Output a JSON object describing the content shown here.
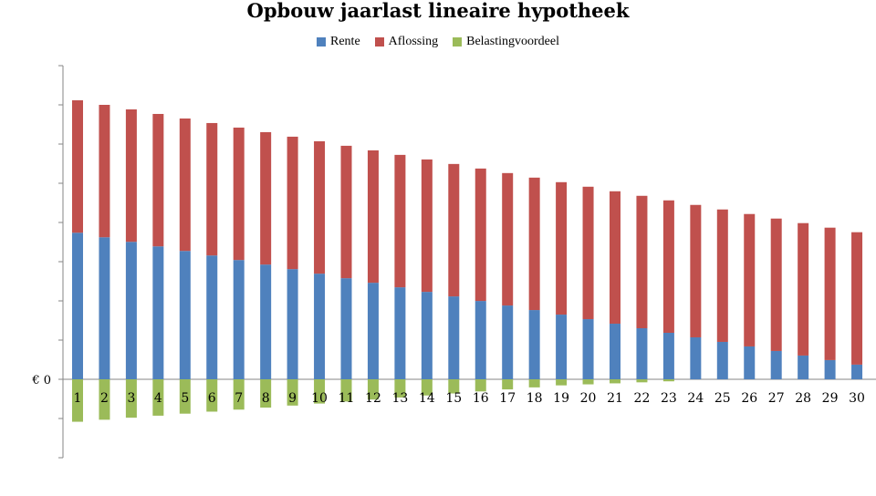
{
  "chart_data": {
    "type": "bar",
    "stacked": true,
    "title": "Opbouw jaarlast lineaire hypotheek",
    "xlabel": "",
    "ylabel": "",
    "y_zero_label": "€ 0",
    "categories": [
      "1",
      "2",
      "3",
      "4",
      "5",
      "6",
      "7",
      "8",
      "9",
      "10",
      "11",
      "12",
      "13",
      "14",
      "15",
      "16",
      "17",
      "18",
      "19",
      "20",
      "21",
      "22",
      "23",
      "24",
      "25",
      "26",
      "27",
      "28",
      "29",
      "30"
    ],
    "series": [
      {
        "name": "Rente",
        "color": "#4F81BD",
        "values": [
          145,
          140.5,
          136,
          131.5,
          127,
          122.5,
          118,
          113.5,
          109,
          104.5,
          100,
          95.5,
          91,
          86.5,
          82,
          77.5,
          73,
          68.5,
          64,
          59.5,
          55,
          50.5,
          46,
          41.5,
          37,
          32.5,
          28,
          23.5,
          19,
          14.5
        ]
      },
      {
        "name": "Aflossing",
        "color": "#C0504D",
        "values": [
          131,
          131,
          131,
          131,
          131,
          131,
          131,
          131,
          131,
          131,
          131,
          131,
          131,
          131,
          131,
          131,
          131,
          131,
          131,
          131,
          131,
          131,
          131,
          131,
          131,
          131,
          131,
          131,
          131,
          131
        ]
      },
      {
        "name": "Belastingvoordeel",
        "color": "#9BBB59",
        "values": [
          -42,
          -40,
          -38,
          -36,
          -34,
          -32,
          -30,
          -28,
          -26,
          -24,
          -22,
          -20,
          -18,
          -16,
          -14,
          -12,
          -10,
          -8,
          -6,
          -5,
          -4,
          -3,
          -2,
          0,
          0,
          0,
          0,
          0,
          0,
          0
        ]
      }
    ],
    "legend_position": "top",
    "grid": false,
    "ylim": [
      -78,
      310
    ]
  }
}
